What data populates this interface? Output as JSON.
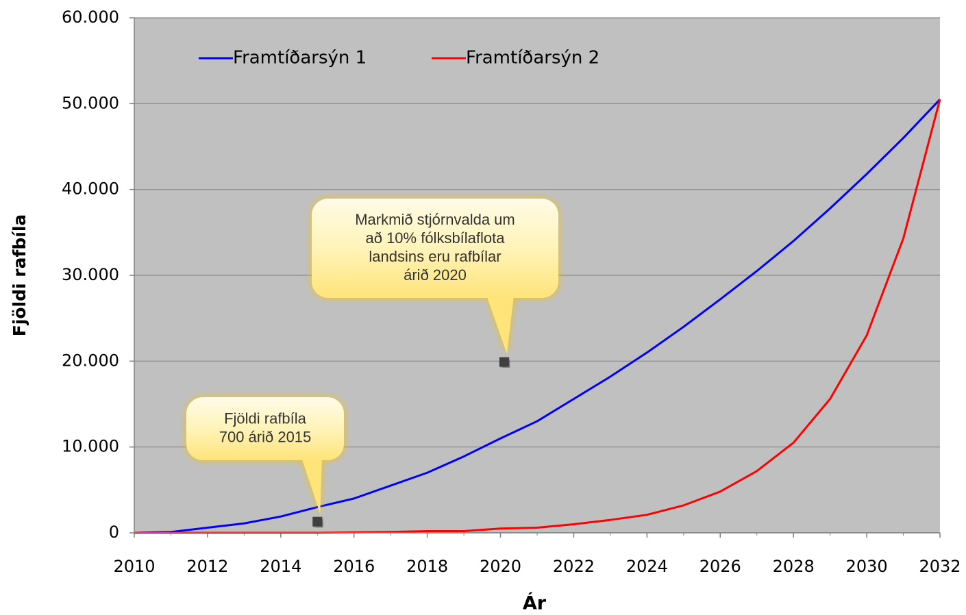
{
  "chart_data": {
    "type": "line",
    "x_label": "Ár",
    "y_label": "Fjöldi rafbíla",
    "x": [
      2010,
      2011,
      2012,
      2013,
      2014,
      2015,
      2016,
      2017,
      2018,
      2019,
      2020,
      2021,
      2022,
      2023,
      2024,
      2025,
      2026,
      2027,
      2028,
      2029,
      2030,
      2031,
      2032
    ],
    "series": [
      {
        "name": "Framtíðarsýn 1",
        "color": "#0000ff",
        "values": [
          0,
          100,
          600,
          1100,
          1900,
          3000,
          4000,
          5500,
          7000,
          8900,
          11000,
          13000,
          15600,
          18200,
          21000,
          24000,
          27200,
          30500,
          34000,
          37800,
          41800,
          46000,
          50500
        ]
      },
      {
        "name": "Framtíðarsýn 2",
        "color": "#ff0000",
        "values": [
          0,
          0,
          0,
          0,
          0,
          0,
          50,
          100,
          200,
          200,
          500,
          600,
          1000,
          1500,
          2100,
          3200,
          4800,
          7200,
          10500,
          15600,
          23000,
          34300,
          50500
        ]
      }
    ],
    "xlim": [
      2010,
      2032
    ],
    "xticks": [
      2010,
      2012,
      2014,
      2016,
      2018,
      2020,
      2022,
      2024,
      2026,
      2028,
      2030,
      2032
    ],
    "ylim": [
      0,
      60000
    ],
    "yticks": [
      0,
      {
        "value": 10000,
        "label": "10.000"
      },
      {
        "value": 20000,
        "label": "20.000"
      },
      {
        "value": 30000,
        "label": "30.000"
      },
      {
        "value": 40000,
        "label": "40.000"
      },
      {
        "value": 50000,
        "label": "50.000"
      },
      {
        "value": 60000,
        "label": "60.000"
      }
    ],
    "grid": true,
    "legend": "top",
    "annotations": [
      {
        "lines": [
          "Fjöldi rafbíla",
          "700 árið 2015"
        ],
        "x": 2015,
        "y": 1300
      },
      {
        "lines": [
          "Markmið stjórnvalda um",
          "að 10% fólksbílaflota",
          "landsins eru rafbílar",
          "árið 2020"
        ],
        "x": 2020.1,
        "y": 19900
      }
    ]
  }
}
